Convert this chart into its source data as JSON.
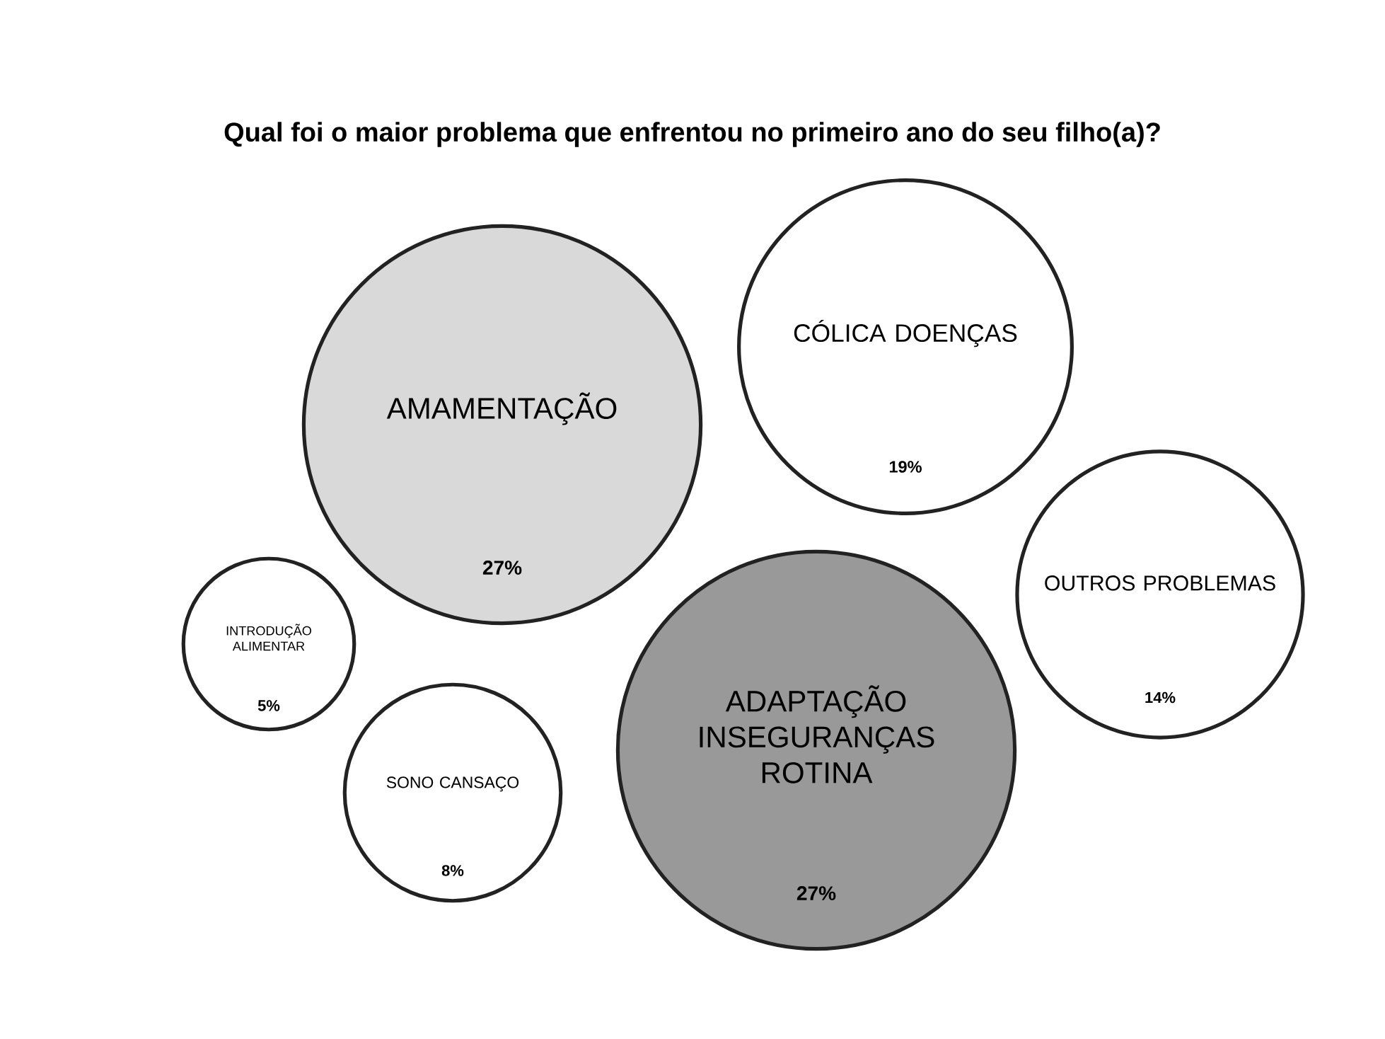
{
  "chart_data": {
    "type": "other",
    "title": "Qual foi o maior problema que enfrentou no primeiro ano do seu filho(a)?",
    "categories": [
      "AMAMENTAÇÃO",
      "CÓLICA DOENÇAS",
      "OUTROS PROBLEMAS",
      "ADAPTAÇÃO INSEGURANÇAS ROTINA",
      "SONO CANSAÇO",
      "INTRODUÇÃO ALIMENTAR"
    ],
    "values": [
      27,
      19,
      14,
      27,
      8,
      5
    ],
    "value_labels": [
      "27%",
      "19%",
      "14%",
      "27%",
      "8%",
      "5%"
    ],
    "colors": [
      "#d9d9d9",
      "#ffffff",
      "#ffffff",
      "#999999",
      "#ffffff",
      "#ffffff"
    ]
  }
}
